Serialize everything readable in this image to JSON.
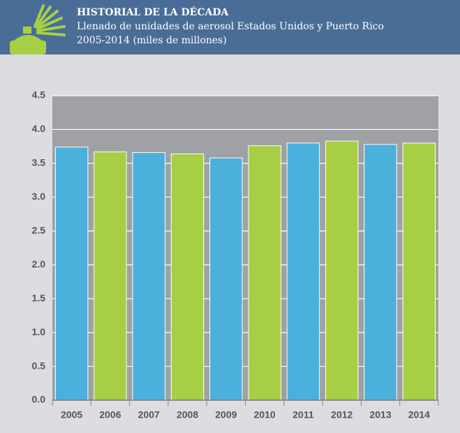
{
  "chart_data": {
    "type": "bar",
    "title": "HISTORIAL DE LA DÉCADA",
    "subtitle": [
      "Llenado de unidades de aerosol Estados Unidos y Puerto Rico",
      "2005-2014 (miles de millones)"
    ],
    "categories": [
      "2005",
      "2006",
      "2007",
      "2008",
      "2009",
      "2010",
      "2011",
      "2012",
      "2013",
      "2014"
    ],
    "values": [
      3.74,
      3.67,
      3.66,
      3.64,
      3.58,
      3.76,
      3.8,
      3.83,
      3.78,
      3.8
    ],
    "colors": [
      "#4bb0dc",
      "#a7cf45",
      "#4bb0dc",
      "#a7cf45",
      "#4bb0dc",
      "#a7cf45",
      "#4bb0dc",
      "#a7cf45",
      "#4bb0dc",
      "#a7cf45"
    ],
    "ylim": [
      0,
      4.5
    ],
    "yticks": [
      {
        "value": 0,
        "label": "0.0"
      },
      0.5,
      {
        "value": 1,
        "label": "1.0"
      },
      1.5,
      {
        "value": 2,
        "label": "2.0"
      },
      2.5,
      {
        "value": 3,
        "label": "3.0"
      },
      3.5,
      {
        "value": 4,
        "label": "4.0"
      },
      4.5
    ],
    "grid": true
  }
}
